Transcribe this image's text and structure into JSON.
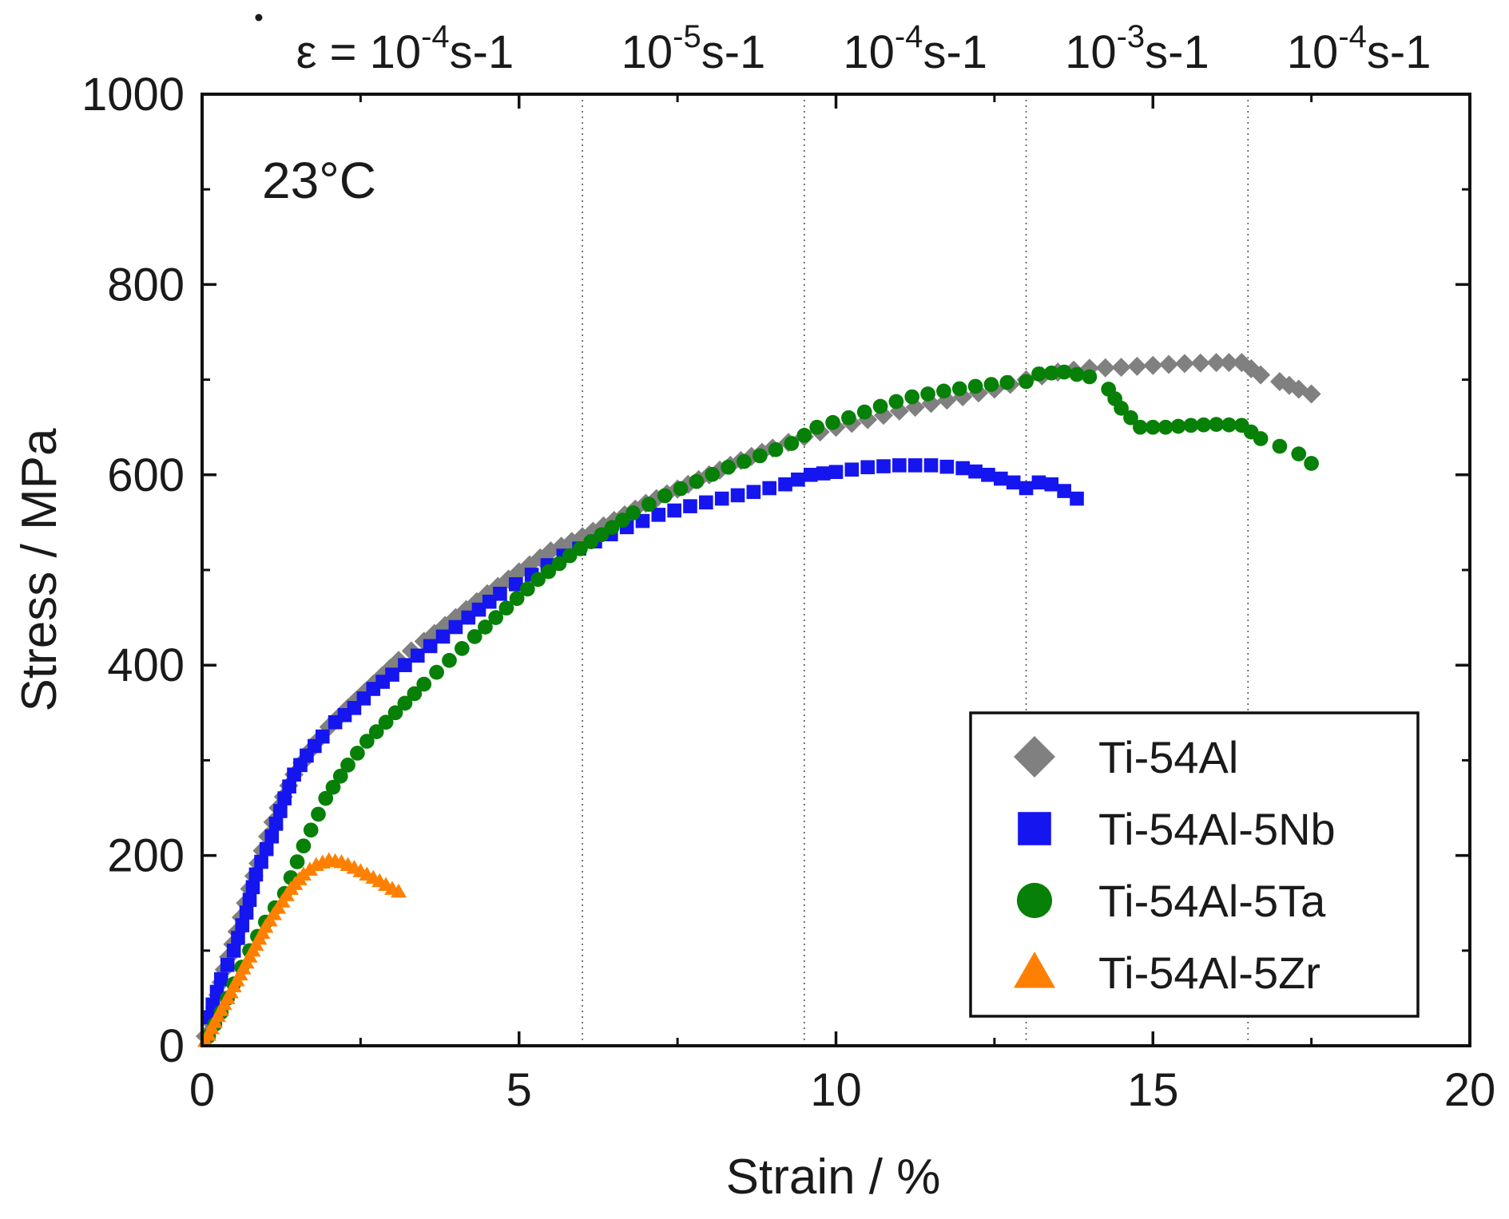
{
  "chart_data": {
    "type": "scatter",
    "title": "",
    "xlabel": "Strain / %",
    "ylabel": "Stress / MPa",
    "xlim": [
      0,
      20
    ],
    "ylim": [
      0,
      1000
    ],
    "xticks": [
      0,
      5,
      10,
      15,
      20
    ],
    "yticks": [
      0,
      200,
      400,
      600,
      800,
      1000
    ],
    "x_tick_labels": [
      "0",
      "5",
      "10",
      "15",
      "20"
    ],
    "y_tick_labels": [
      "0",
      "200",
      "400",
      "600",
      "800",
      "1000"
    ],
    "temperature_label": "23°C",
    "rate_changes_at_strain": [
      6.0,
      9.5,
      13.0,
      16.5
    ],
    "rate_labels": [
      {
        "prefix": "ε = ",
        "base": "10",
        "exp": "-4",
        "unit": "s-1",
        "x_center": 3.2
      },
      {
        "prefix": "",
        "base": "10",
        "exp": "-5",
        "unit": "s-1",
        "x_center": 7.75
      },
      {
        "prefix": "",
        "base": "10",
        "exp": "-4",
        "unit": "s-1",
        "x_center": 11.25
      },
      {
        "prefix": "",
        "base": "10",
        "exp": "-3",
        "unit": "s-1",
        "x_center": 14.75
      },
      {
        "prefix": "",
        "base": "10",
        "exp": "-4",
        "unit": "s-1",
        "x_center": 18.25
      }
    ],
    "legend_position": "bottom-right",
    "series": [
      {
        "name": "Ti-54Al",
        "marker": "diamond",
        "color": "#808080",
        "points": [
          [
            0.05,
            10
          ],
          [
            0.2,
            40
          ],
          [
            0.35,
            80
          ],
          [
            0.55,
            120
          ],
          [
            0.75,
            165
          ],
          [
            0.95,
            205
          ],
          [
            1.2,
            250
          ],
          [
            1.45,
            285
          ],
          [
            1.7,
            310
          ],
          [
            2.0,
            335
          ],
          [
            2.3,
            355
          ],
          [
            2.7,
            380
          ],
          [
            3.1,
            405
          ],
          [
            3.5,
            425
          ],
          [
            4.0,
            450
          ],
          [
            4.5,
            475
          ],
          [
            5.0,
            498
          ],
          [
            5.5,
            520
          ],
          [
            6.0,
            535
          ],
          [
            6.5,
            552
          ],
          [
            7.0,
            570
          ],
          [
            7.5,
            585
          ],
          [
            8.0,
            600
          ],
          [
            8.5,
            615
          ],
          [
            9.0,
            628
          ],
          [
            9.5,
            640
          ],
          [
            10.0,
            650
          ],
          [
            10.5,
            658
          ],
          [
            11.0,
            667
          ],
          [
            11.5,
            675
          ],
          [
            12.0,
            682
          ],
          [
            12.5,
            690
          ],
          [
            13.0,
            700
          ],
          [
            13.5,
            708
          ],
          [
            14.0,
            712
          ],
          [
            14.5,
            713
          ],
          [
            15.0,
            715
          ],
          [
            15.5,
            717
          ],
          [
            16.0,
            718
          ],
          [
            16.4,
            718
          ],
          [
            16.7,
            705
          ],
          [
            17.0,
            698
          ],
          [
            17.3,
            690
          ],
          [
            17.5,
            685
          ]
        ]
      },
      {
        "name": "Ti-54Al-5Nb",
        "marker": "square",
        "color": "#1515f0",
        "points": [
          [
            0.1,
            30
          ],
          [
            0.3,
            70
          ],
          [
            0.5,
            100
          ],
          [
            0.7,
            140
          ],
          [
            0.85,
            180
          ],
          [
            1.1,
            220
          ],
          [
            1.3,
            260
          ],
          [
            1.45,
            285
          ],
          [
            1.65,
            305
          ],
          [
            1.9,
            325
          ],
          [
            2.1,
            340
          ],
          [
            2.4,
            355
          ],
          [
            2.7,
            375
          ],
          [
            3.0,
            390
          ],
          [
            3.4,
            410
          ],
          [
            3.8,
            430
          ],
          [
            4.2,
            450
          ],
          [
            4.7,
            475
          ],
          [
            5.2,
            495
          ],
          [
            5.7,
            515
          ],
          [
            6.2,
            530
          ],
          [
            6.7,
            545
          ],
          [
            7.2,
            558
          ],
          [
            7.7,
            567
          ],
          [
            8.2,
            575
          ],
          [
            8.7,
            582
          ],
          [
            9.2,
            590
          ],
          [
            9.6,
            600
          ],
          [
            10.0,
            603
          ],
          [
            10.5,
            608
          ],
          [
            11.0,
            610
          ],
          [
            11.5,
            610
          ],
          [
            12.0,
            607
          ],
          [
            12.4,
            600
          ],
          [
            12.8,
            592
          ],
          [
            13.0,
            586
          ],
          [
            13.2,
            592
          ],
          [
            13.4,
            590
          ],
          [
            13.6,
            583
          ],
          [
            13.8,
            575
          ]
        ]
      },
      {
        "name": "Ti-54Al-5Ta",
        "marker": "circle",
        "color": "#068006",
        "points": [
          [
            0.1,
            10
          ],
          [
            0.3,
            35
          ],
          [
            0.5,
            65
          ],
          [
            0.75,
            100
          ],
          [
            1.0,
            130
          ],
          [
            1.3,
            160
          ],
          [
            1.6,
            210
          ],
          [
            1.95,
            260
          ],
          [
            2.3,
            295
          ],
          [
            2.6,
            320
          ],
          [
            2.9,
            340
          ],
          [
            3.2,
            360
          ],
          [
            3.5,
            380
          ],
          [
            3.9,
            405
          ],
          [
            4.3,
            430
          ],
          [
            4.8,
            460
          ],
          [
            5.3,
            490
          ],
          [
            5.8,
            515
          ],
          [
            6.3,
            537
          ],
          [
            6.8,
            560
          ],
          [
            7.3,
            578
          ],
          [
            7.8,
            593
          ],
          [
            8.3,
            608
          ],
          [
            8.8,
            620
          ],
          [
            9.3,
            633
          ],
          [
            9.7,
            650
          ],
          [
            10.2,
            660
          ],
          [
            10.7,
            672
          ],
          [
            11.2,
            682
          ],
          [
            11.7,
            688
          ],
          [
            12.2,
            693
          ],
          [
            12.7,
            697
          ],
          [
            13.0,
            698
          ],
          [
            13.2,
            706
          ],
          [
            13.6,
            708
          ],
          [
            14.0,
            703
          ],
          [
            14.3,
            690
          ],
          [
            14.5,
            670
          ],
          [
            14.8,
            650
          ],
          [
            15.2,
            650
          ],
          [
            15.6,
            652
          ],
          [
            16.0,
            653
          ],
          [
            16.4,
            652
          ],
          [
            16.7,
            638
          ],
          [
            17.0,
            630
          ],
          [
            17.3,
            622
          ],
          [
            17.5,
            612
          ]
        ]
      },
      {
        "name": "Ti-54Al-5Zr",
        "marker": "triangle",
        "color": "#ff8000",
        "points": [
          [
            0.05,
            5
          ],
          [
            0.2,
            25
          ],
          [
            0.4,
            50
          ],
          [
            0.6,
            75
          ],
          [
            0.8,
            100
          ],
          [
            1.0,
            125
          ],
          [
            1.2,
            145
          ],
          [
            1.4,
            165
          ],
          [
            1.6,
            180
          ],
          [
            1.8,
            190
          ],
          [
            2.0,
            195
          ],
          [
            2.2,
            193
          ],
          [
            2.4,
            187
          ],
          [
            2.6,
            180
          ],
          [
            2.8,
            173
          ],
          [
            3.0,
            165
          ],
          [
            3.1,
            162
          ]
        ]
      }
    ]
  }
}
